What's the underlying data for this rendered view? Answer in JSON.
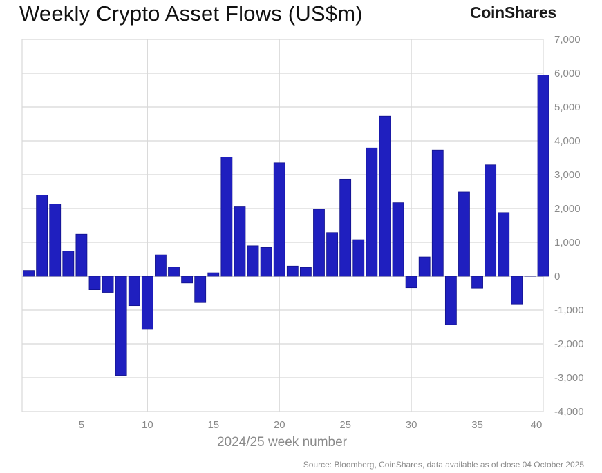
{
  "header": {
    "title": "Weekly Crypto Asset Flows (US$m)",
    "brand": "CoinShares"
  },
  "footer": {
    "source": "Source: Bloomberg, CoinShares, data available as of close 04 October 2025"
  },
  "colors": {
    "bar": "#1f1fbf",
    "bar_edge": "#12128a",
    "grid": "#d8d8d8",
    "axis_text": "#8a8a8a"
  },
  "chart_data": {
    "type": "bar",
    "title": "Weekly Crypto Asset Flows (US$m)",
    "xlabel": "2024/25 week number",
    "ylabel": "",
    "ylim": [
      -4000,
      7000
    ],
    "xlim": [
      0.5,
      40
    ],
    "y_axis_side": "right",
    "grid": true,
    "yticks": [
      7000,
      6000,
      5000,
      4000,
      3000,
      2000,
      1000,
      0,
      -1000,
      -2000,
      -3000,
      -4000
    ],
    "ytick_labels": [
      "7,000",
      "6,000",
      "5,000",
      "4,000",
      "3,000",
      "2,000",
      "1,000",
      "0",
      "-1,000",
      "-2,000",
      "-3,000",
      "-4,000"
    ],
    "xticks": [
      5,
      10,
      15,
      20,
      25,
      30,
      35,
      40
    ],
    "xtick_labels": [
      "5",
      "10",
      "15",
      "20",
      "25",
      "30",
      "35",
      "40"
    ],
    "x_vgrid": [
      10,
      20,
      30,
      40
    ],
    "x": [
      1,
      2,
      3,
      4,
      5,
      6,
      7,
      8,
      9,
      10,
      11,
      12,
      13,
      14,
      15,
      16,
      17,
      18,
      19,
      20,
      21,
      22,
      23,
      24,
      25,
      26,
      27,
      28,
      29,
      30,
      31,
      32,
      33,
      34,
      35,
      36,
      37,
      38,
      39,
      40
    ],
    "values": [
      170,
      2400,
      2130,
      740,
      1240,
      -400,
      -480,
      -2930,
      -870,
      -1570,
      630,
      270,
      -200,
      -780,
      100,
      3520,
      2050,
      900,
      850,
      3350,
      300,
      260,
      1980,
      1290,
      2870,
      1080,
      3790,
      4730,
      2170,
      -340,
      570,
      3730,
      -1430,
      2490,
      -350,
      3290,
      1880,
      -820,
      0,
      5950
    ]
  }
}
